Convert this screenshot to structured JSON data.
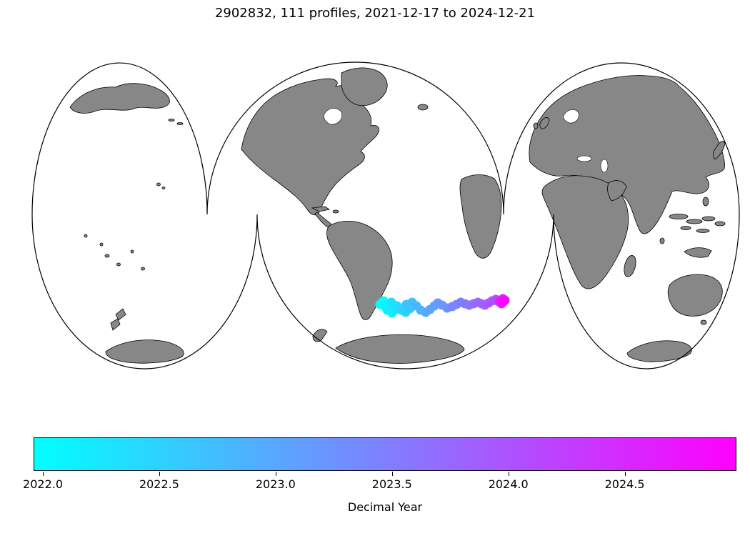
{
  "title": "2902832, 111 profiles, 2021-12-17 to 2024-12-21",
  "chart_data": {
    "type": "scatter",
    "subtype": "float-trajectory-on-world-map",
    "title": "2902832, 111 profiles, 2021-12-17 to 2024-12-21",
    "float_id": "2902832",
    "profiles": 111,
    "date_start": "2021-12-17",
    "date_end": "2024-12-21",
    "projection_note": "interrupted three-lobe world map, gray land on white ocean, black coastlines",
    "land_color": "#878787",
    "ocean_color": "#ffffff",
    "colorbar": {
      "label": "Decimal Year",
      "colormap": "cool",
      "color_start": "#00ffff",
      "color_end": "#ff00ff",
      "domain": [
        2021.96,
        2024.98
      ],
      "ticks": [
        {
          "value": 2022.0,
          "label": "2022.0"
        },
        {
          "value": 2022.5,
          "label": "2022.5"
        },
        {
          "value": 2023.0,
          "label": "2023.0"
        },
        {
          "value": 2023.5,
          "label": "2023.5"
        },
        {
          "value": 2024.0,
          "label": "2024.0"
        },
        {
          "value": 2024.5,
          "label": "2024.5"
        }
      ]
    },
    "trajectory": {
      "region_note": "South Atlantic band east of South America, west-to-east drift colored early(cyan) to late(magenta)",
      "marker_radius": 6.5,
      "points": [
        {
          "px": 537,
          "py": 421,
          "t": 2021.97
        },
        {
          "px": 532,
          "py": 426,
          "t": 2022.0
        },
        {
          "px": 540,
          "py": 430,
          "t": 2022.05
        },
        {
          "px": 546,
          "py": 426,
          "t": 2022.1
        },
        {
          "px": 542,
          "py": 434,
          "t": 2022.16
        },
        {
          "px": 549,
          "py": 438,
          "t": 2022.21
        },
        {
          "px": 554,
          "py": 433,
          "t": 2022.27
        },
        {
          "px": 548,
          "py": 423,
          "t": 2022.32
        },
        {
          "px": 556,
          "py": 428,
          "t": 2022.38
        },
        {
          "px": 562,
          "py": 434,
          "t": 2022.45
        },
        {
          "px": 568,
          "py": 437,
          "t": 2022.52
        },
        {
          "px": 574,
          "py": 432,
          "t": 2022.6
        },
        {
          "px": 569,
          "py": 426,
          "t": 2022.66
        },
        {
          "px": 577,
          "py": 423,
          "t": 2022.72
        },
        {
          "px": 583,
          "py": 428,
          "t": 2022.8
        },
        {
          "px": 589,
          "py": 434,
          "t": 2022.88
        },
        {
          "px": 596,
          "py": 437,
          "t": 2022.95
        },
        {
          "px": 602,
          "py": 433,
          "t": 2023.02
        },
        {
          "px": 608,
          "py": 428,
          "t": 2023.08
        },
        {
          "px": 613,
          "py": 424,
          "t": 2023.14
        },
        {
          "px": 619,
          "py": 427,
          "t": 2023.2
        },
        {
          "px": 626,
          "py": 431,
          "t": 2023.27
        },
        {
          "px": 633,
          "py": 429,
          "t": 2023.33
        },
        {
          "px": 639,
          "py": 426,
          "t": 2023.4
        },
        {
          "px": 645,
          "py": 423,
          "t": 2023.46
        },
        {
          "px": 651,
          "py": 425,
          "t": 2023.53
        },
        {
          "px": 657,
          "py": 427,
          "t": 2023.6
        },
        {
          "px": 663,
          "py": 425,
          "t": 2023.66
        },
        {
          "px": 669,
          "py": 423,
          "t": 2023.73
        },
        {
          "px": 674,
          "py": 425,
          "t": 2023.8
        },
        {
          "px": 679,
          "py": 427,
          "t": 2023.86
        },
        {
          "px": 684,
          "py": 424,
          "t": 2023.93
        },
        {
          "px": 689,
          "py": 421,
          "t": 2024.0
        },
        {
          "px": 694,
          "py": 419,
          "t": 2024.08
        },
        {
          "px": 698,
          "py": 422,
          "t": 2024.16
        },
        {
          "px": 702,
          "py": 425,
          "t": 2024.25
        },
        {
          "px": 705,
          "py": 422,
          "t": 2024.35
        },
        {
          "px": 707,
          "py": 420,
          "t": 2024.45
        },
        {
          "px": 704,
          "py": 418,
          "t": 2024.55
        },
        {
          "px": 700,
          "py": 421,
          "t": 2024.66
        },
        {
          "px": 703,
          "py": 424,
          "t": 2024.8
        },
        {
          "px": 706,
          "py": 421,
          "t": 2024.97
        }
      ]
    }
  }
}
